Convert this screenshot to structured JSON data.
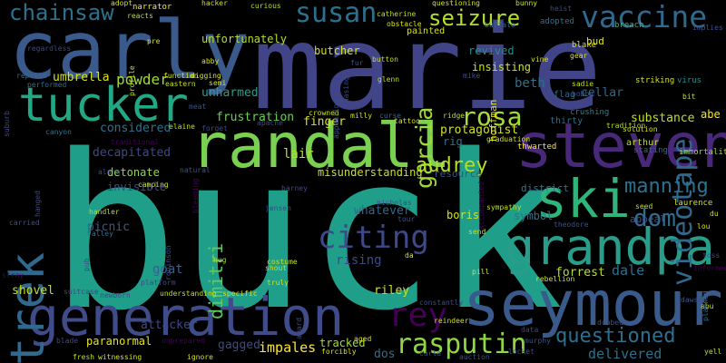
{
  "colors": {
    "background": "#000000",
    "palette": [
      "#440154",
      "#482878",
      "#3e4989",
      "#31688e",
      "#26828e",
      "#1f9e89",
      "#35b779",
      "#6ece58",
      "#b5de2b",
      "#fde725"
    ]
  },
  "words": [
    {
      "text": "buck",
      "color": "#1f9e89"
    },
    {
      "text": "marie",
      "color": "#414487"
    },
    {
      "text": "carly",
      "color": "#3b5a8c"
    },
    {
      "text": "randall",
      "color": "#7ad151"
    },
    {
      "text": "steven",
      "color": "#482878"
    },
    {
      "text": "seymour",
      "color": "#3b5a8c"
    },
    {
      "text": "generation",
      "color": "#404b8a"
    },
    {
      "text": "grandpa",
      "color": "#2a9d8a"
    },
    {
      "text": "tucker",
      "color": "#22a884"
    },
    {
      "text": "trek",
      "color": "#31688e"
    },
    {
      "text": "ski",
      "color": "#2fb47c"
    },
    {
      "text": "vaccine",
      "color": "#31688e"
    },
    {
      "text": "videotape",
      "color": "#31688e"
    },
    {
      "text": "susan",
      "color": "#2d708e"
    },
    {
      "text": "chainsaw",
      "color": "#2d708e"
    },
    {
      "text": "seizure",
      "color": "#b5de2b"
    },
    {
      "text": "garcia",
      "color": "#a0da39"
    },
    {
      "text": "rosa",
      "color": "#a5db36"
    },
    {
      "text": "audrey",
      "color": "#b5de2b"
    },
    {
      "text": "citing",
      "color": "#3e4989"
    },
    {
      "text": "dimitri",
      "color": "#5ec962"
    },
    {
      "text": "manning",
      "color": "#2c728e"
    },
    {
      "text": "dom",
      "color": "#2e6f8e"
    },
    {
      "text": "rey",
      "color": "#440154"
    },
    {
      "text": "rasputin",
      "color": "#8fd744"
    },
    {
      "text": "questioned",
      "color": "#2d708e"
    },
    {
      "text": "delivered",
      "color": "#2d708e"
    },
    {
      "text": "umbrella",
      "color": "#d8e219"
    },
    {
      "text": "powder",
      "color": "#a0da39"
    },
    {
      "text": "unharmed",
      "color": "#2a9d8a"
    },
    {
      "text": "frustration",
      "color": "#6ece58"
    },
    {
      "text": "considered",
      "color": "#2d708e"
    },
    {
      "text": "decapitated",
      "color": "#3e4989"
    },
    {
      "text": "detonate",
      "color": "#8fd744"
    },
    {
      "text": "invisible",
      "color": "#3e4989"
    },
    {
      "text": "picnic",
      "color": "#3b5a8c"
    },
    {
      "text": "goat",
      "color": "#34618d"
    },
    {
      "text": "shovel",
      "color": "#c2df23"
    },
    {
      "text": "paranormal",
      "color": "#e2e418"
    },
    {
      "text": "attacker",
      "color": "#3e4989"
    },
    {
      "text": "gagged",
      "color": "#3e4989"
    },
    {
      "text": "impales",
      "color": "#fde725"
    },
    {
      "text": "dos",
      "color": "#2d708e"
    },
    {
      "text": "tracked",
      "color": "#a5db36"
    },
    {
      "text": "riley",
      "color": "#d0e11c"
    },
    {
      "text": "forrest",
      "color": "#b5de2b"
    },
    {
      "text": "dale",
      "color": "#2d708e"
    },
    {
      "text": "substance",
      "color": "#c2df23"
    },
    {
      "text": "abe",
      "color": "#fde725"
    },
    {
      "text": "cellar",
      "color": "#31688e"
    },
    {
      "text": "beth",
      "color": "#2d708e"
    },
    {
      "text": "revived",
      "color": "#21918c"
    },
    {
      "text": "insisting",
      "color": "#c8e020"
    },
    {
      "text": "protagonist",
      "color": "#d0e11c"
    },
    {
      "text": "rig",
      "color": "#2c728e"
    },
    {
      "text": "finger",
      "color": "#d8e219"
    },
    {
      "text": "lair",
      "color": "#b5de2b"
    },
    {
      "text": "misunderstanding",
      "color": "#c8e020"
    },
    {
      "text": "whatever",
      "color": "#31688e"
    },
    {
      "text": "rising",
      "color": "#3e4989"
    },
    {
      "text": "boris",
      "color": "#d8e219"
    },
    {
      "text": "symbol",
      "color": "#2c728e"
    },
    {
      "text": "district",
      "color": "#2a788e"
    },
    {
      "text": "resource",
      "color": "#3b528b"
    },
    {
      "text": "butcher",
      "color": "#d8e219"
    },
    {
      "text": "unfortunately",
      "color": "#b5de2b"
    },
    {
      "text": "hoffman",
      "color": "#e2e418"
    },
    {
      "text": "bud",
      "color": "#e2e418"
    },
    {
      "text": "thirty",
      "color": "#2d708e"
    },
    {
      "text": "appeal",
      "color": "#3b528b"
    },
    {
      "text": "flag",
      "color": "#31688e"
    },
    {
      "text": "arthur",
      "color": "#bddf26"
    },
    {
      "text": "laurence",
      "color": "#d0e11c"
    },
    {
      "text": "stating",
      "color": "#31688e"
    },
    {
      "text": "immortality",
      "color": "#a0da39"
    },
    {
      "text": "thwarted",
      "color": "#fde725"
    },
    {
      "text": "crushing",
      "color": "#26828e"
    },
    {
      "text": "striking",
      "color": "#d0e11c"
    },
    {
      "text": "adopted",
      "color": "#2c728e"
    },
    {
      "text": "breach",
      "color": "#35b779"
    },
    {
      "text": "implies",
      "color": "#3b528b"
    },
    {
      "text": "virus",
      "color": "#21918c"
    },
    {
      "text": "solution",
      "color": "#d8e219"
    },
    {
      "text": "tradition",
      "color": "#b5de2b"
    },
    {
      "text": "reacts",
      "color": "#b5de2b"
    },
    {
      "text": "narrator",
      "color": "#fde725"
    },
    {
      "text": "adopt",
      "color": "#d8e219"
    },
    {
      "text": "hacker",
      "color": "#d0e11c"
    },
    {
      "text": "curious",
      "color": "#b5de2b"
    },
    {
      "text": "catherine",
      "color": "#c2df23"
    },
    {
      "text": "questioning",
      "color": "#d0e11c"
    },
    {
      "text": "bunny",
      "color": "#c8e020"
    },
    {
      "text": "heist",
      "color": "#3e4989"
    },
    {
      "text": "painted",
      "color": "#d8e219"
    },
    {
      "text": "obstacle",
      "color": "#d8e219"
    },
    {
      "text": "blake",
      "color": "#d8e219"
    },
    {
      "text": "regardless",
      "color": "#3e4989"
    },
    {
      "text": "reprise",
      "color": "#2d708e"
    },
    {
      "text": "performed",
      "color": "#2d708e"
    },
    {
      "text": "profile",
      "color": "#c8e020"
    },
    {
      "text": "abby",
      "color": "#d8e219"
    },
    {
      "text": "function",
      "color": "#d0e11c"
    },
    {
      "text": "digging",
      "color": "#d8e219"
    },
    {
      "text": "eastern",
      "color": "#c2df23"
    },
    {
      "text": "semi",
      "color": "#d8e219"
    },
    {
      "text": "meat",
      "color": "#3b528b"
    },
    {
      "text": "fur",
      "color": "#3b528b"
    },
    {
      "text": "button",
      "color": "#c2df23"
    },
    {
      "text": "glenn",
      "color": "#b5de2b"
    },
    {
      "text": "mike",
      "color": "#3b528b"
    },
    {
      "text": "vine",
      "color": "#d8e219"
    },
    {
      "text": "gear",
      "color": "#d8e219"
    },
    {
      "text": "sadie",
      "color": "#c2df23"
    },
    {
      "text": "bobby",
      "color": "#3b528b"
    },
    {
      "text": "bit",
      "color": "#c8e020"
    },
    {
      "text": "crowned",
      "color": "#d0e11c"
    },
    {
      "text": "milly",
      "color": "#c8e020"
    },
    {
      "text": "curse",
      "color": "#31688e"
    },
    {
      "text": "tattoo",
      "color": "#d0e11c"
    },
    {
      "text": "ridge",
      "color": "#c2df23"
    },
    {
      "text": "graduation",
      "color": "#d8e219"
    },
    {
      "text": "elaine",
      "color": "#c2df23"
    },
    {
      "text": "forget",
      "color": "#3e4989"
    },
    {
      "text": "apache",
      "color": "#3e4989"
    },
    {
      "text": "bleeding",
      "color": "#440154"
    },
    {
      "text": "canyon",
      "color": "#2d708e"
    },
    {
      "text": "traditional",
      "color": "#440154"
    },
    {
      "text": "alarm",
      "color": "#3b528b"
    },
    {
      "text": "natural",
      "color": "#3b528b"
    },
    {
      "text": "camping",
      "color": "#c2df23"
    },
    {
      "text": "barney",
      "color": "#3e4989"
    },
    {
      "text": "nicholas",
      "color": "#3e4989"
    },
    {
      "text": "jensen",
      "color": "#3e4989"
    },
    {
      "text": "handler",
      "color": "#b5de2b"
    },
    {
      "text": "valley",
      "color": "#2d708e"
    },
    {
      "text": "carried",
      "color": "#3b528b"
    },
    {
      "text": "hanged",
      "color": "#3e4989"
    },
    {
      "text": "hug",
      "color": "#b5de2b"
    },
    {
      "text": "costume",
      "color": "#c2df23"
    },
    {
      "text": "shout",
      "color": "#c2df23"
    },
    {
      "text": "truly",
      "color": "#c8e020"
    },
    {
      "text": "send",
      "color": "#c2df23"
    },
    {
      "text": "pill",
      "color": "#d0e11c"
    },
    {
      "text": "rebellion",
      "color": "#d0e11c"
    },
    {
      "text": "pub",
      "color": "#3e4989"
    },
    {
      "text": "suitcase",
      "color": "#3e4989"
    },
    {
      "text": "newborn",
      "color": "#3e4989"
    },
    {
      "text": "platform",
      "color": "#3e4989"
    },
    {
      "text": "understanding",
      "color": "#c2df23"
    },
    {
      "text": "specific",
      "color": "#d8e219"
    },
    {
      "text": "award",
      "color": "#3e4989"
    },
    {
      "text": "constantly",
      "color": "#3e4989"
    },
    {
      "text": "reindeer",
      "color": "#c8e020"
    },
    {
      "text": "dubbed",
      "color": "#3b528b"
    },
    {
      "text": "dawson",
      "color": "#3b528b"
    },
    {
      "text": "blade",
      "color": "#3e4989"
    },
    {
      "text": "witnessing",
      "color": "#d8e219"
    },
    {
      "text": "fresh",
      "color": "#c2df23"
    },
    {
      "text": "ignore",
      "color": "#d8e219"
    },
    {
      "text": "forcibly",
      "color": "#d8e219"
    },
    {
      "text": "auction",
      "color": "#3b528b"
    },
    {
      "text": "murphy",
      "color": "#3b528b"
    },
    {
      "text": "locket",
      "color": "#3b528b"
    },
    {
      "text": "abu",
      "color": "#c8e020"
    },
    {
      "text": "theodore",
      "color": "#3b528b"
    },
    {
      "text": "seed",
      "color": "#c2df23"
    },
    {
      "text": "lou",
      "color": "#d8e219"
    },
    {
      "text": "du",
      "color": "#d8e219"
    },
    {
      "text": "sympathy",
      "color": "#c2df23"
    },
    {
      "text": "planned",
      "color": "#2d708e"
    },
    {
      "text": "informed",
      "color": "#440154"
    },
    {
      "text": "toss",
      "color": "#3e4989"
    },
    {
      "text": "stray",
      "color": "#440154"
    },
    {
      "text": "suburb",
      "color": "#3e4989"
    },
    {
      "text": "pre",
      "color": "#d8e219"
    },
    {
      "text": "chasing",
      "color": "#3e4989"
    },
    {
      "text": "appearing",
      "color": "#3b528b"
    },
    {
      "text": "yell",
      "color": "#c2df23"
    },
    {
      "text": "accompanied",
      "color": "#440154"
    },
    {
      "text": "unprepared",
      "color": "#440154"
    },
    {
      "text": "buffalo",
      "color": "#2d708e"
    },
    {
      "text": "aged",
      "color": "#d8e219"
    },
    {
      "text": "data",
      "color": "#3e4989"
    },
    {
      "text": "carla",
      "color": "#3e4989"
    },
    {
      "text": "da",
      "color": "#d8e219"
    },
    {
      "text": "tour",
      "color": "#3b528b"
    },
    {
      "text": "robinson",
      "color": "#3e4989"
    }
  ]
}
